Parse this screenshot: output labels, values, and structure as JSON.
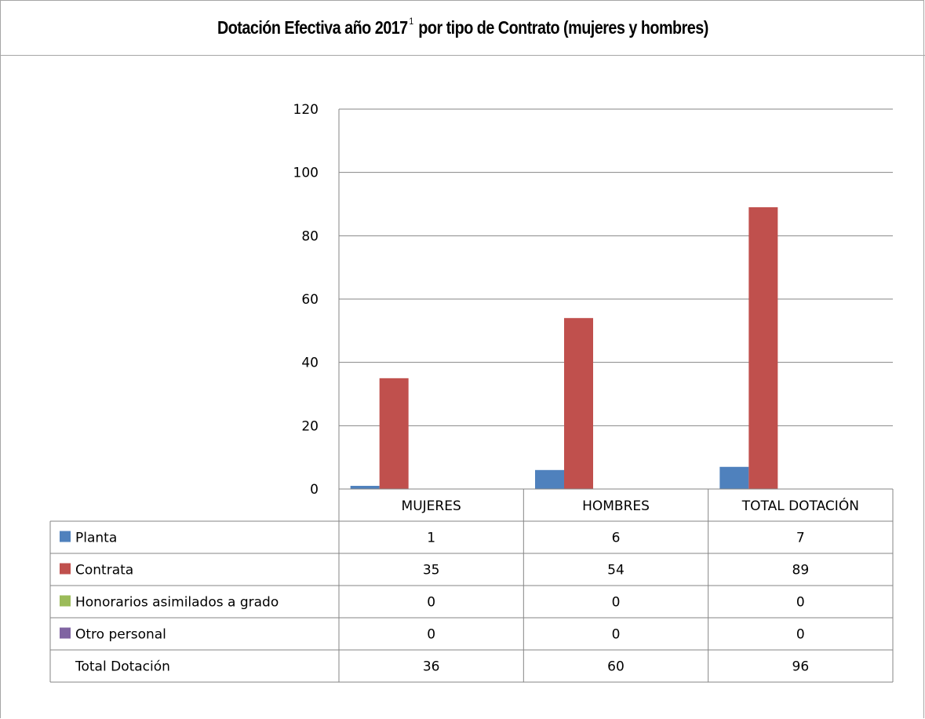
{
  "chart_data": {
    "type": "bar",
    "title_main": "Dotación Efectiva año 2017",
    "title_sup": "1",
    "title_rest": " por tipo de Contrato (mujeres y hombres)",
    "categories": [
      "MUJERES",
      "HOMBRES",
      "TOTAL DOTACIÓN"
    ],
    "ylim": [
      0,
      120
    ],
    "yticks": [
      "0",
      "20",
      "40",
      "60",
      "80",
      "100",
      "120"
    ],
    "grid": true,
    "legend": "data-table",
    "series": [
      {
        "name": "Planta",
        "values": [
          1,
          6,
          7
        ],
        "color": "#4f81bd"
      },
      {
        "name": "Contrata",
        "values": [
          35,
          54,
          89
        ],
        "color": "#c0504d"
      },
      {
        "name": "Honorarios asimilados a grado",
        "values": [
          0,
          0,
          0
        ],
        "color": "#9bbb59"
      },
      {
        "name": "Otro personal",
        "values": [
          0,
          0,
          0
        ],
        "color": "#8064a2"
      }
    ],
    "total_row": {
      "label": "Total Dotación",
      "values": [
        36,
        60,
        96
      ]
    }
  }
}
